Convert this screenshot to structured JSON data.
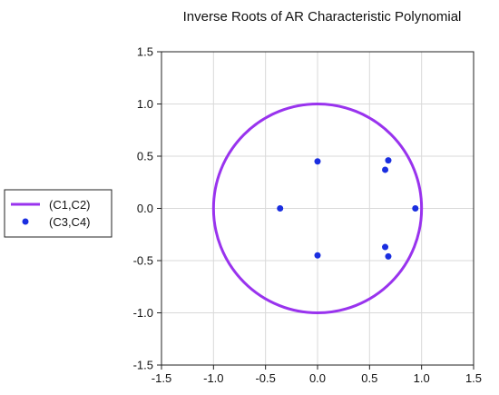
{
  "chart_data": {
    "type": "scatter",
    "title": "Inverse Roots of AR Characteristic Polynomial",
    "xlabel": "",
    "ylabel": "",
    "xlim": [
      -1.5,
      1.5
    ],
    "ylim": [
      -1.5,
      1.5
    ],
    "xticks": [
      "-1.5",
      "-1.0",
      "-0.5",
      "0.0",
      "0.5",
      "1.0",
      "1.5"
    ],
    "yticks": [
      "1.5",
      "1.0",
      "0.5",
      "0.0",
      "-0.5",
      "-1.0",
      "-1.5"
    ],
    "grid": true,
    "legend_position": "left",
    "series": [
      {
        "name": "(C1,C2)",
        "kind": "unit-circle",
        "radius": 1.0,
        "color": "#9933ee"
      },
      {
        "name": "(C3,C4)",
        "kind": "points",
        "color": "#1a2ee0",
        "points": [
          {
            "x": 0.0,
            "y": 0.45
          },
          {
            "x": 0.0,
            "y": -0.45
          },
          {
            "x": -0.36,
            "y": 0.0
          },
          {
            "x": 0.94,
            "y": 0.0
          },
          {
            "x": 0.68,
            "y": 0.46
          },
          {
            "x": 0.65,
            "y": 0.37
          },
          {
            "x": 0.65,
            "y": -0.37
          },
          {
            "x": 0.68,
            "y": -0.46
          }
        ]
      }
    ]
  }
}
